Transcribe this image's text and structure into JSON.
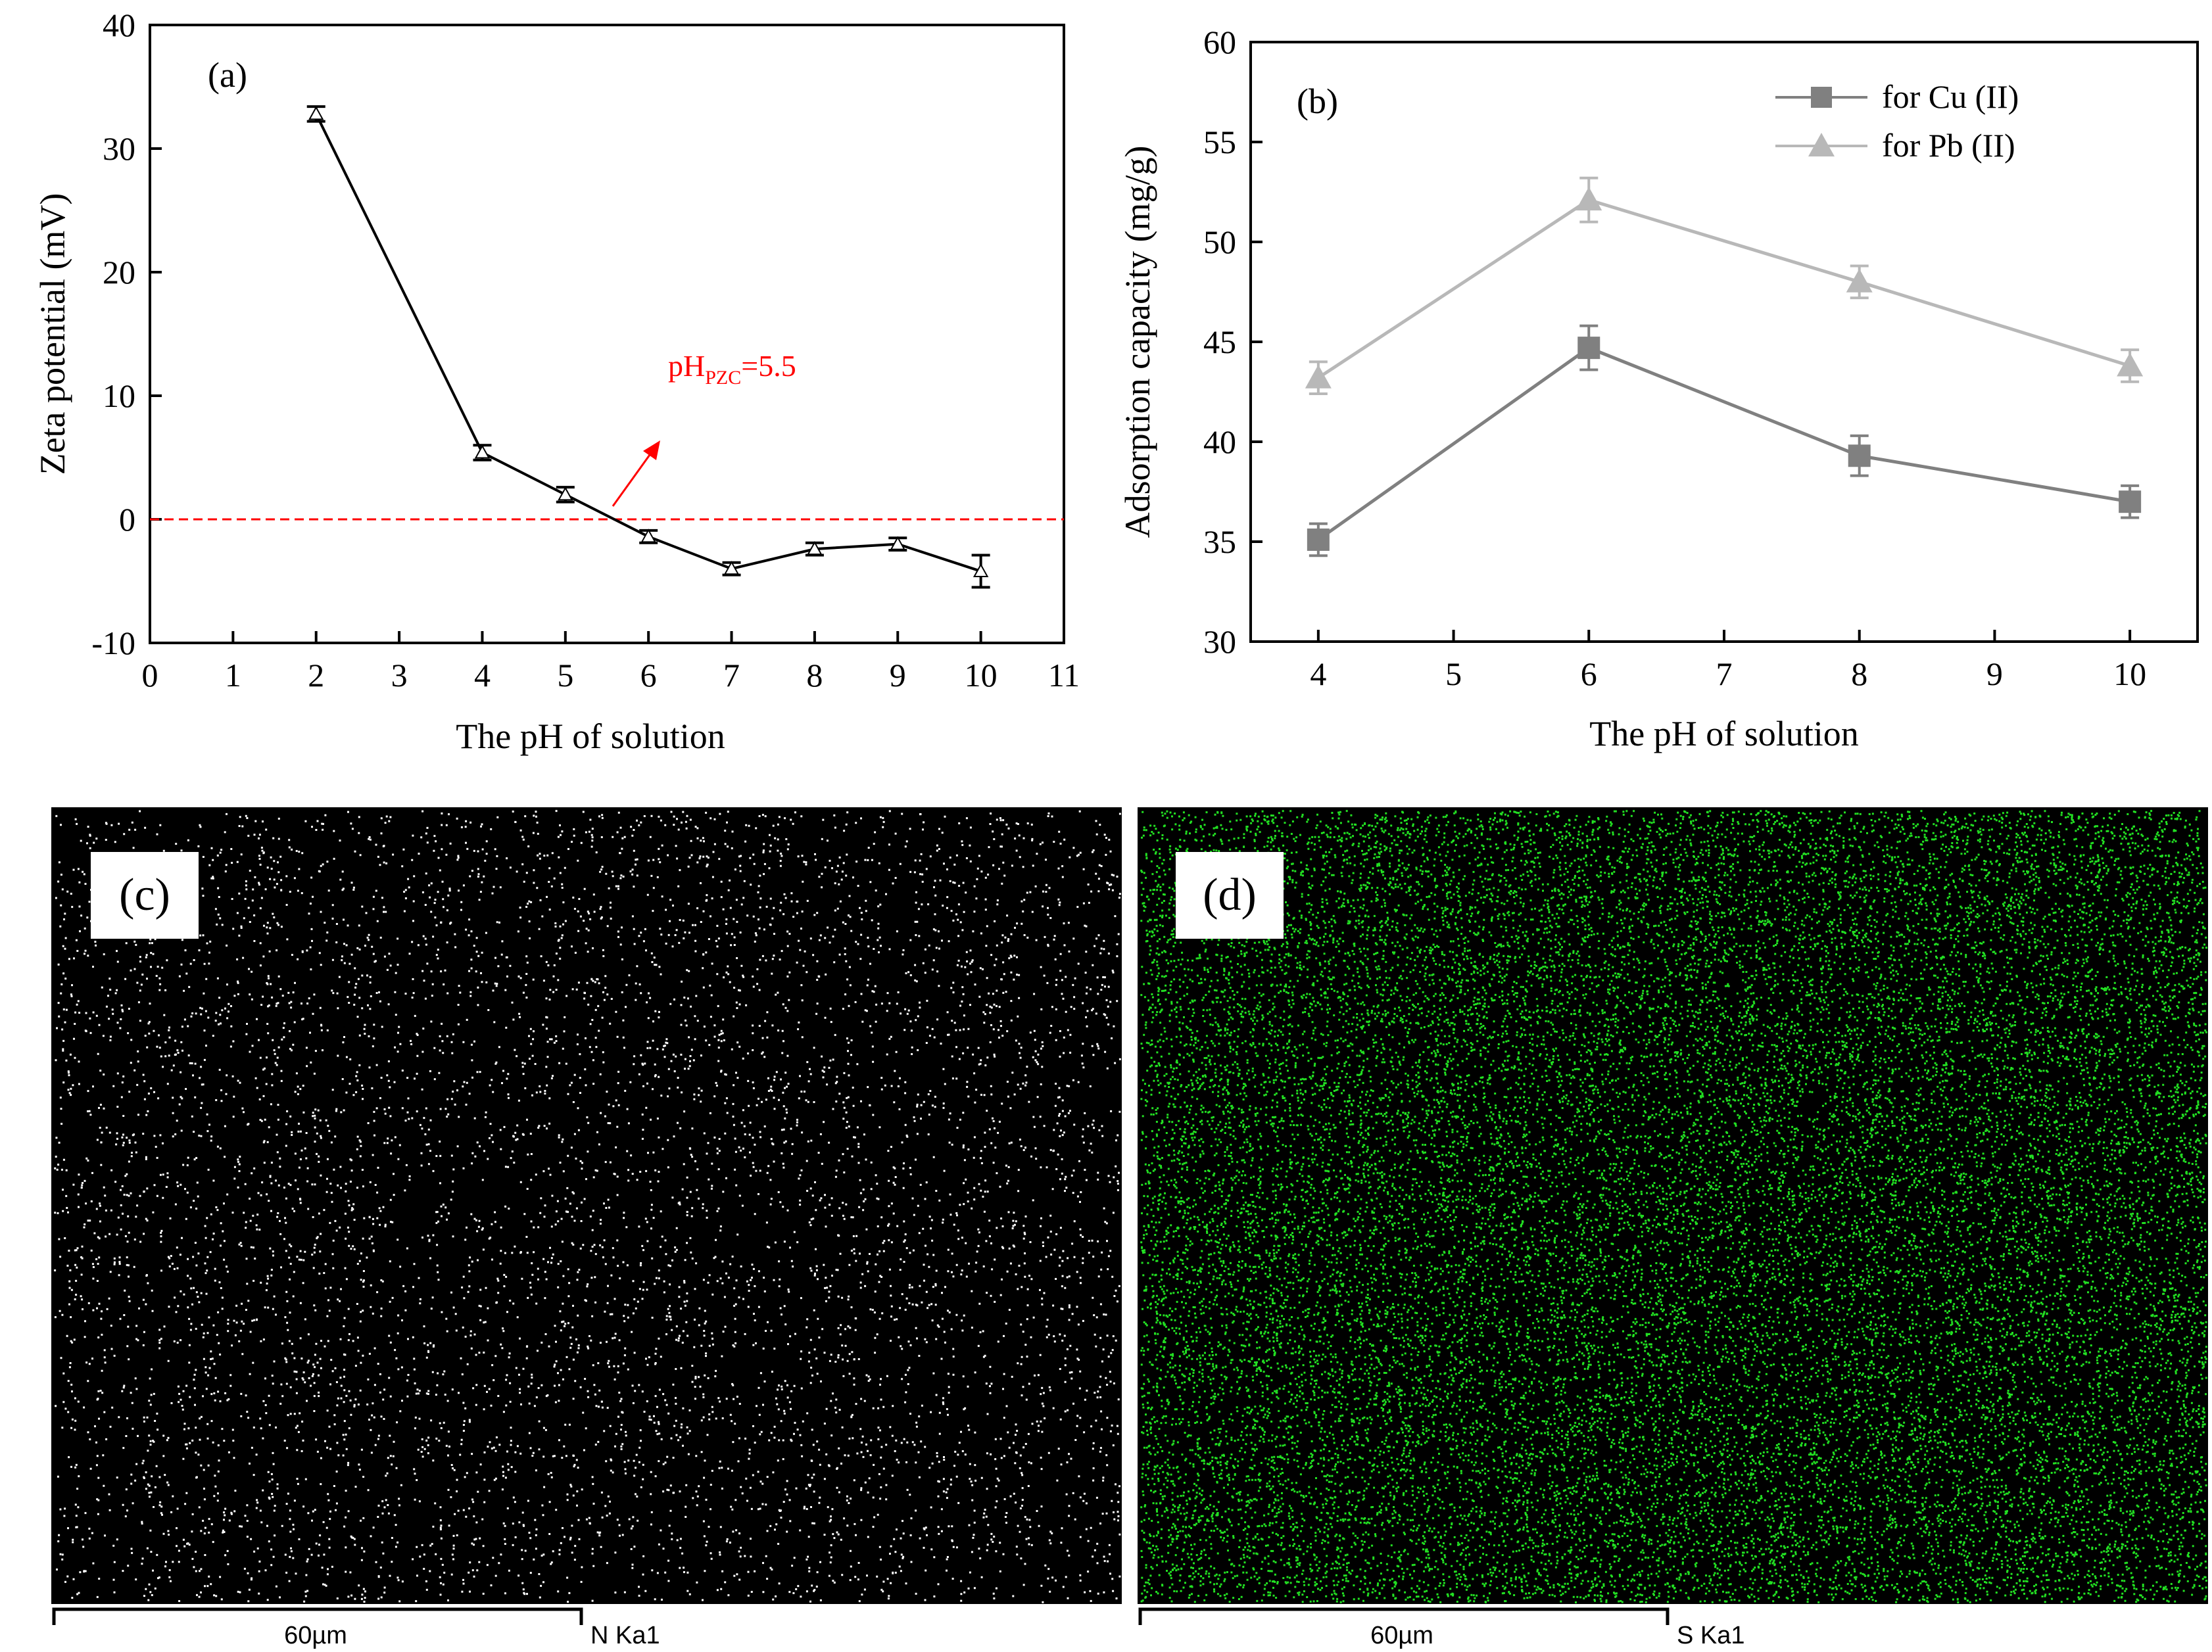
{
  "chart_data": [
    {
      "panel_label": "(a)",
      "type": "line",
      "xlabel": "The pH of solution",
      "ylabel": "Zeta potential (mV)",
      "xlim": [
        0,
        11
      ],
      "ylim": [
        -10,
        40
      ],
      "xticks": [
        "0",
        "1",
        "2",
        "3",
        "4",
        "5",
        "6",
        "7",
        "8",
        "9",
        "10",
        "11"
      ],
      "yticks": [
        "-10",
        "0",
        "10",
        "20",
        "30",
        "40"
      ],
      "grid": false,
      "series": [
        {
          "x": [
            2,
            4,
            5,
            6,
            7,
            8,
            9,
            10
          ],
          "y": [
            32.8,
            5.4,
            2.0,
            -1.4,
            -4.0,
            -2.4,
            -2.0,
            -4.2
          ],
          "err": [
            0.6,
            0.6,
            0.6,
            0.5,
            0.5,
            0.5,
            0.5,
            1.3
          ],
          "color": "#000000",
          "marker": "triangle-open"
        }
      ],
      "reference_line": {
        "y": 0,
        "color": "#ff0000",
        "style": "dashed"
      },
      "annotation": {
        "text_main": "pH",
        "text_sub": "PZC",
        "text_tail": "=5.5",
        "color": "#ff0000"
      }
    },
    {
      "panel_label": "(b)",
      "type": "line",
      "xlabel": "The pH of solution",
      "ylabel": "Adsorption capacity (mg/g)",
      "xlim": [
        3.5,
        10.5
      ],
      "ylim": [
        30,
        60
      ],
      "xticks": [
        "4",
        "5",
        "6",
        "7",
        "8",
        "9",
        "10"
      ],
      "yticks": [
        "30",
        "35",
        "40",
        "45",
        "50",
        "55",
        "60"
      ],
      "grid": false,
      "legend_position": "top-right",
      "series": [
        {
          "name": "for Cu (II)",
          "x": [
            4,
            6,
            8,
            10
          ],
          "y": [
            35.1,
            44.7,
            39.3,
            37.0
          ],
          "err": [
            0.8,
            1.1,
            1.0,
            0.8
          ],
          "color": "#808080",
          "marker": "square"
        },
        {
          "name": "for Pb (II)",
          "x": [
            4,
            6,
            8,
            10
          ],
          "y": [
            43.2,
            52.1,
            48.0,
            43.8
          ],
          "err": [
            0.8,
            1.1,
            0.8,
            0.8
          ],
          "color": "#b8b8b8",
          "marker": "triangle"
        }
      ]
    }
  ],
  "maps": [
    {
      "panel_label": "(c)",
      "scale_label": "60µm",
      "element_label": "N Ka1",
      "dot_color": "#ffffff"
    },
    {
      "panel_label": "(d)",
      "scale_label": "60µm",
      "element_label": "S Ka1",
      "dot_color": "#22e022"
    }
  ]
}
